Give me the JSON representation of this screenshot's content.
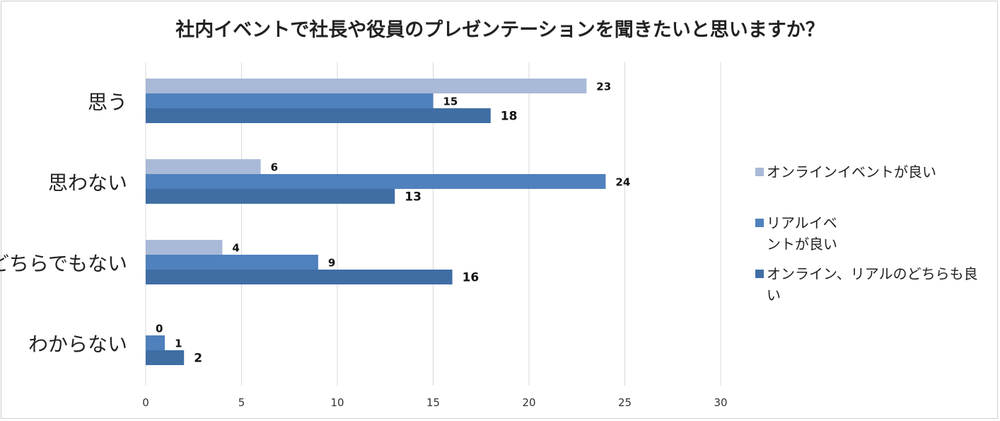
{
  "chart_data": {
    "type": "bar",
    "orientation": "horizontal",
    "title": "社内イベントで社長や役員のプレゼンテーションを聞きたいと思いますか？",
    "categories": [
      "思う",
      "思わない",
      "どちらでもない",
      "わからない"
    ],
    "series": [
      {
        "name": "オンラインイベントが良い",
        "color": "#a9b9d8",
        "values": [
          23,
          6,
          4,
          0
        ]
      },
      {
        "name": "リアルイベントが良い",
        "color": "#4f81bd",
        "values": [
          15,
          24,
          9,
          1
        ]
      },
      {
        "name": "オンライン、リアルのどちらも良い",
        "color": "#3f6ea5",
        "values": [
          18,
          13,
          16,
          2
        ]
      }
    ],
    "legend_lines": [
      [
        "オンラインイベントが良い"
      ],
      [
        "リアルイベ",
        "ントが良い"
      ],
      [
        "オンライン、リアルのどちらも良",
        "い"
      ]
    ],
    "xlim": [
      0,
      30
    ],
    "xticks": [
      0,
      5,
      10,
      15,
      20,
      25,
      30
    ],
    "grid": true,
    "legend_position": "right"
  }
}
